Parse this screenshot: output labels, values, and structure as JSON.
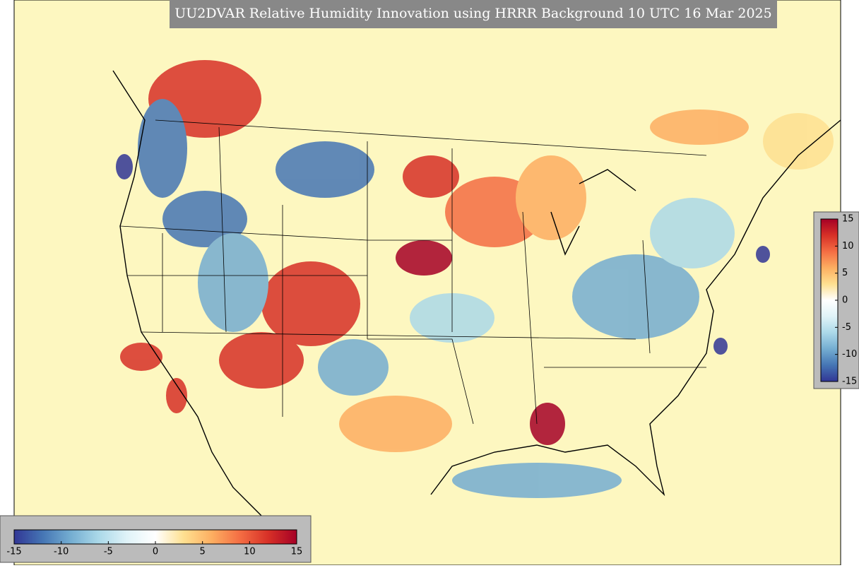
{
  "title": "UU2DVAR Relative Humidity Innovation using HRRR Background 10 UTC 16 Mar 2025",
  "colorbar": {
    "lim": [
      -15,
      15
    ],
    "ticks": [
      -15,
      -10,
      -5,
      0,
      5,
      10,
      15
    ],
    "colormap": [
      "#313695",
      "#4575b4",
      "#74add1",
      "#abd9e9",
      "#e0f3f8",
      "#ffffff",
      "#fee090",
      "#fdae61",
      "#f46d43",
      "#d73027",
      "#a50026"
    ]
  }
}
